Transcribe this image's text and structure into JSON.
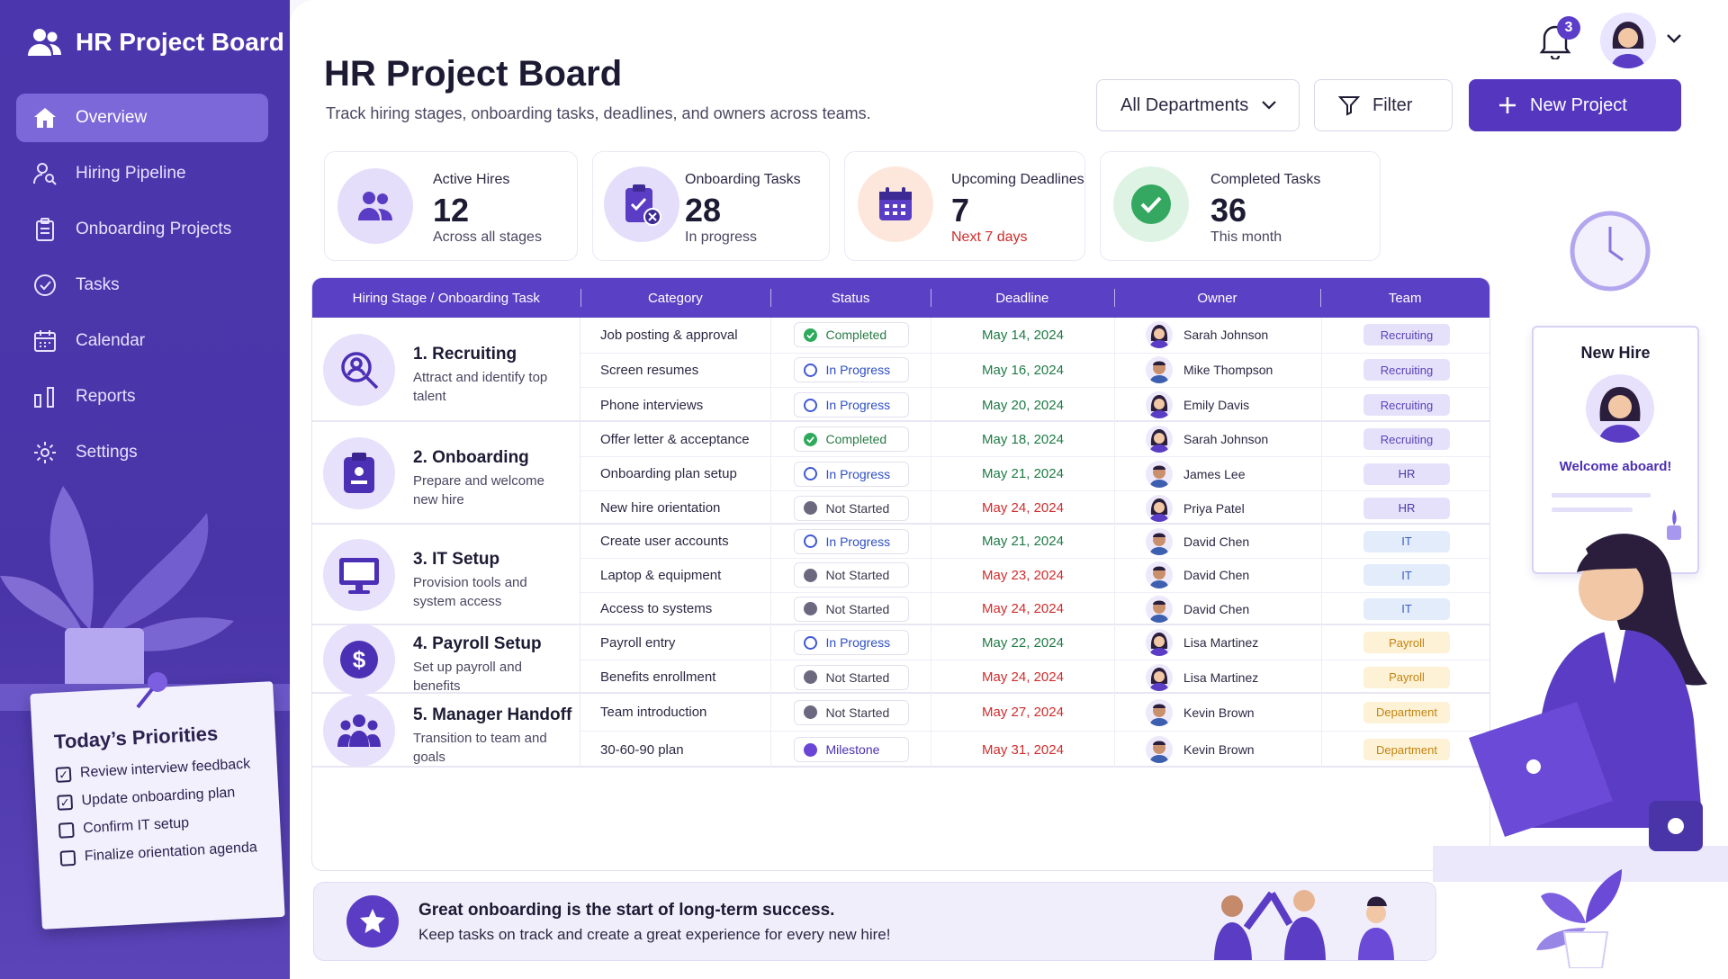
{
  "app": {
    "title": "HR Project Board"
  },
  "sidebar": {
    "items": [
      {
        "label": "Overview",
        "icon": "home-icon",
        "active": true
      },
      {
        "label": "Hiring Pipeline",
        "icon": "user-search-icon"
      },
      {
        "label": "Onboarding Projects",
        "icon": "clipboard-icon"
      },
      {
        "label": "Tasks",
        "icon": "check-circle-icon"
      },
      {
        "label": "Calendar",
        "icon": "calendar-icon"
      },
      {
        "label": "Reports",
        "icon": "bar-chart-icon"
      },
      {
        "label": "Settings",
        "icon": "gear-icon"
      }
    ]
  },
  "priorities": {
    "title": "Today’s Priorities",
    "items": [
      {
        "label": "Review interview feedback",
        "checked": true
      },
      {
        "label": "Update onboarding plan",
        "checked": true
      },
      {
        "label": "Confirm IT setup",
        "checked": false
      },
      {
        "label": "Finalize orientation agenda",
        "checked": false
      }
    ]
  },
  "header": {
    "title": "HR Project Board",
    "subtitle": "Track hiring stages, onboarding tasks, deadlines, and owners across teams.",
    "department": "All Departments",
    "filter": "Filter",
    "new_project": "New Project",
    "notifications": "3"
  },
  "stats": [
    {
      "label": "Active Hires",
      "value": "12",
      "sub": "Across all stages",
      "color": "#e5defb"
    },
    {
      "label": "Onboarding Tasks",
      "value": "28",
      "sub": "In progress",
      "color": "#e5defb"
    },
    {
      "label": "Upcoming Deadlines",
      "value": "7",
      "sub": "Next 7 days",
      "color": "#fde7dd"
    },
    {
      "label": "Completed Tasks",
      "value": "36",
      "sub": "This month",
      "color": "#dff3e5"
    }
  ],
  "table": {
    "columns": [
      "Hiring Stage / Onboarding Task",
      "Category",
      "Status",
      "Deadline",
      "Owner",
      "Team"
    ],
    "groups": [
      {
        "title": "1. Recruiting",
        "desc": "Attract and identify top talent",
        "rows": [
          {
            "task": "Job posting & approval",
            "status": "Completed",
            "deadline": "May 14, 2024",
            "owner": "Sarah Johnson",
            "team": "Recruiting"
          },
          {
            "task": "Screen resumes",
            "status": "In Progress",
            "deadline": "May 16, 2024",
            "owner": "Mike Thompson",
            "team": "Recruiting"
          },
          {
            "task": "Phone interviews",
            "status": "In Progress",
            "deadline": "May 20, 2024",
            "owner": "Emily Davis",
            "team": "Recruiting"
          }
        ]
      },
      {
        "title": "2. Onboarding",
        "desc": "Prepare and welcome new hire",
        "rows": [
          {
            "task": "Offer letter & acceptance",
            "status": "Completed",
            "deadline": "May 18, 2024",
            "owner": "Sarah Johnson",
            "team": "Recruiting"
          },
          {
            "task": "Onboarding plan setup",
            "status": "In Progress",
            "deadline": "May 21, 2024",
            "owner": "James Lee",
            "team": "HR"
          },
          {
            "task": "New hire orientation",
            "status": "Not Started",
            "deadline": "May 24, 2024",
            "owner": "Priya Patel",
            "team": "HR"
          }
        ]
      },
      {
        "title": "3. IT Setup",
        "desc": "Provision tools and system access",
        "rows": [
          {
            "task": "Create user accounts",
            "status": "In Progress",
            "deadline": "May 21, 2024",
            "owner": "David Chen",
            "team": "IT"
          },
          {
            "task": "Laptop & equipment",
            "status": "Not Started",
            "deadline": "May 23, 2024",
            "owner": "David Chen",
            "team": "IT"
          },
          {
            "task": "Access to systems",
            "status": "Not Started",
            "deadline": "May 24, 2024",
            "owner": "David Chen",
            "team": "IT"
          }
        ]
      },
      {
        "title": "4. Payroll Setup",
        "desc": "Set up payroll and benefits",
        "rows": [
          {
            "task": "Payroll entry",
            "status": "In Progress",
            "deadline": "May 22, 2024",
            "owner": "Lisa Martinez",
            "team": "Payroll"
          },
          {
            "task": "Benefits enrollment",
            "status": "Not Started",
            "deadline": "May 24, 2024",
            "owner": "Lisa Martinez",
            "team": "Payroll"
          }
        ]
      },
      {
        "title": "5. Manager Handoff",
        "desc": "Transition to team and goals",
        "rows": [
          {
            "task": "Team introduction",
            "status": "Not Started",
            "deadline": "May 27, 2024",
            "owner": "Kevin Brown",
            "team": "Department"
          },
          {
            "task": "30-60-90 plan",
            "status": "Milestone",
            "deadline": "May 31, 2024",
            "owner": "Kevin Brown",
            "team": "Department"
          }
        ]
      }
    ]
  },
  "banner": {
    "line1": "Great onboarding is the start of long-term success.",
    "line2": "Keep tasks on track and create a great experience for every new hire!"
  },
  "new_hire_card": {
    "title": "New Hire",
    "message": "Welcome aboard!"
  },
  "colors": {
    "primary": "#5537bf",
    "sidebar": "#4c36ad",
    "completed": "#2eaa5c",
    "in_progress": "#4058d6",
    "overdue": "#d02c2c"
  }
}
